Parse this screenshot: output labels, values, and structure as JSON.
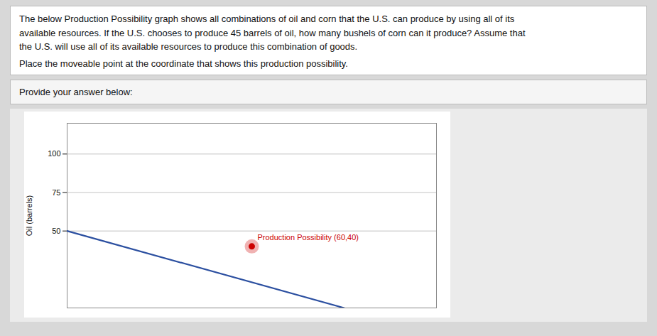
{
  "chart_data": {
    "type": "line",
    "title": "The below Production Possibility graph shows all combinations of oil and corn that the U.S. can produce by using all of its\navailable resources. If the U.S. chooses to produce 45 barrels of oil, how many bushels of corn can it produce? Assume that\nthe U.S. will use all of its available resources to produce this combination of goods.",
    "subtitle": "Place the moveable point at the coordinate that shows this production possibility.",
    "annotations": [
      {
        "text": "Provide your answer below:"
      }
    ],
    "x": [
      0,
      90
    ],
    "values": [
      50,
      0
    ],
    "color": "#2b4fa0",
    "points": [
      {
        "x": 60,
        "y": 40,
        "label": "Production Possibility (60,40)",
        "color": "#cc0000"
      }
    ],
    "ylabel": "Oil (barrels)",
    "xlim": [
      0,
      120
    ],
    "ylim": [
      0,
      120
    ],
    "xticks": [],
    "yticks": [
      50,
      75,
      100
    ],
    "grid": true,
    "tick_labels": "y"
  }
}
